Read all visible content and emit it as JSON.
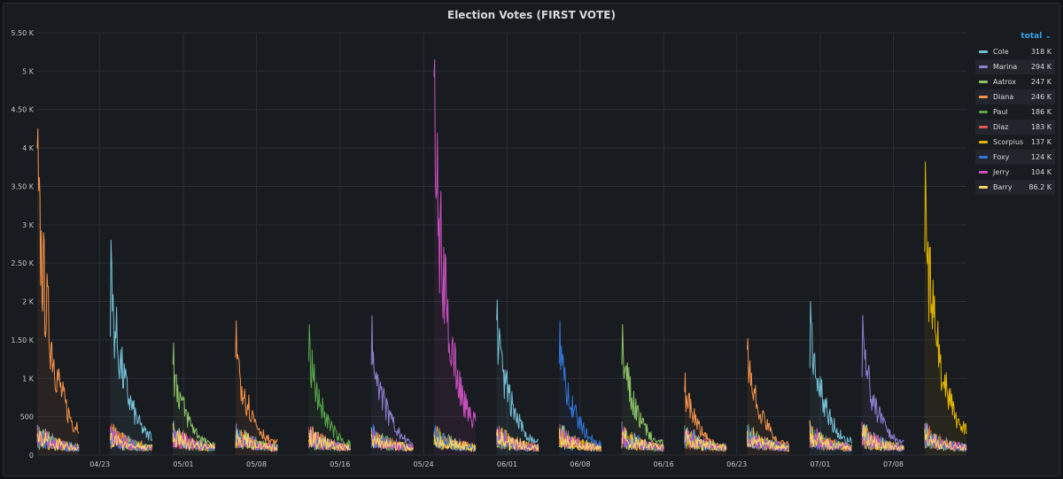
{
  "panel": {
    "title": "Election Votes (FIRST VOTE)",
    "legend_sort_label": "total ⌄"
  },
  "chart_data": {
    "type": "line",
    "title": "Election Votes (FIRST VOTE)",
    "xlabel": "",
    "ylabel": "",
    "ylim": [
      0,
      5500
    ],
    "y_ticks": [
      0,
      500,
      1000,
      1500,
      2000,
      2500,
      3000,
      3500,
      4000,
      4500,
      5000,
      5500
    ],
    "y_tick_labels": [
      "0",
      "500",
      "1 K",
      "1.50 K",
      "2 K",
      "2.50 K",
      "3 K",
      "3.50 K",
      "4 K",
      "4.50 K",
      "5 K",
      "5.50 K"
    ],
    "x_domain": [
      "2021-04-17",
      "2021-07-15"
    ],
    "x_ticks": [
      "2021-04-23",
      "2021-05-01",
      "2021-05-08",
      "2021-05-16",
      "2021-05-24",
      "2021-06-01",
      "2021-06-08",
      "2021-06-16",
      "2021-06-23",
      "2021-07-01",
      "2021-07-08"
    ],
    "x_tick_labels": [
      "04/23",
      "05/01",
      "05/08",
      "05/16",
      "05/24",
      "06/01",
      "06/08",
      "06/16",
      "06/23",
      "07/01",
      "07/08"
    ],
    "grid": true,
    "legend_position": "right",
    "series": [
      {
        "name": "Cole",
        "color": "#73bfd4",
        "total": "318 K"
      },
      {
        "name": "Marina",
        "color": "#8f7fd1",
        "total": "294 K"
      },
      {
        "name": "Aatrox",
        "color": "#8bc468",
        "total": "247 K"
      },
      {
        "name": "Diana",
        "color": "#f2914a",
        "total": "246 K"
      },
      {
        "name": "Paul",
        "color": "#56a64b",
        "total": "186 K"
      },
      {
        "name": "Diaz",
        "color": "#e0534f",
        "total": "183 K"
      },
      {
        "name": "Scorpius",
        "color": "#e0b400",
        "total": "137 K"
      },
      {
        "name": "Foxy",
        "color": "#3274d9",
        "total": "124 K"
      },
      {
        "name": "Jerry",
        "color": "#c94fbf",
        "total": "104 K"
      },
      {
        "name": "Barry",
        "color": "#f5d36b",
        "total": "86.2 K"
      }
    ],
    "bursts": [
      {
        "start": "2021-04-17",
        "end": "2021-04-21",
        "peak": 4250,
        "leader": "Diana"
      },
      {
        "start": "2021-04-24",
        "end": "2021-04-28",
        "peak": 2800,
        "leader": "Cole"
      },
      {
        "start": "2021-04-30",
        "end": "2021-05-04",
        "peak": 1460,
        "leader": "Aatrox"
      },
      {
        "start": "2021-05-06",
        "end": "2021-05-10",
        "peak": 1750,
        "leader": "Diana"
      },
      {
        "start": "2021-05-13",
        "end": "2021-05-17",
        "peak": 1700,
        "leader": "Paul"
      },
      {
        "start": "2021-05-19",
        "end": "2021-05-23",
        "peak": 1820,
        "leader": "Marina"
      },
      {
        "start": "2021-05-25",
        "end": "2021-05-29",
        "peak": 5150,
        "leader": "Jerry"
      },
      {
        "start": "2021-05-31",
        "end": "2021-06-04",
        "peak": 2020,
        "leader": "Cole"
      },
      {
        "start": "2021-06-06",
        "end": "2021-06-10",
        "peak": 1750,
        "leader": "Foxy"
      },
      {
        "start": "2021-06-12",
        "end": "2021-06-16",
        "peak": 1700,
        "leader": "Aatrox"
      },
      {
        "start": "2021-06-18",
        "end": "2021-06-22",
        "peak": 1070,
        "leader": "Diana"
      },
      {
        "start": "2021-06-24",
        "end": "2021-06-28",
        "peak": 1520,
        "leader": "Diana"
      },
      {
        "start": "2021-06-30",
        "end": "2021-07-04",
        "peak": 2000,
        "leader": "Cole"
      },
      {
        "start": "2021-07-05",
        "end": "2021-07-09",
        "peak": 1820,
        "leader": "Marina"
      },
      {
        "start": "2021-07-11",
        "end": "2021-07-15",
        "peak": 3820,
        "leader": "Scorpius"
      }
    ]
  }
}
